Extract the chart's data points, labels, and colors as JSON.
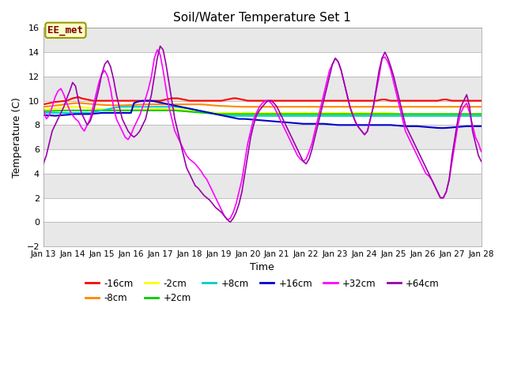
{
  "title": "Soil/Water Temperature Set 1",
  "xlabel": "Time",
  "ylabel": "Temperature (C)",
  "ylim": [
    -2,
    16
  ],
  "yticks": [
    -2,
    0,
    2,
    4,
    6,
    8,
    10,
    12,
    14,
    16
  ],
  "xlim": [
    0,
    15
  ],
  "xtick_labels": [
    "Jan 13",
    "Jan 14",
    "Jan 15",
    "Jan 16",
    "Jan 17",
    "Jan 18",
    "Jan 19",
    "Jan 20",
    "Jan 21",
    "Jan 22",
    "Jan 23",
    "Jan 24",
    "Jan 25",
    "Jan 26",
    "Jan 27",
    "Jan 28"
  ],
  "annotation_text": "EE_met",
  "annotation_bg": "#ffffcc",
  "annotation_border": "#999900",
  "annotation_text_color": "#800000",
  "bg_color": "#e8e8e8",
  "white_band_starts": [
    -2,
    2,
    6,
    10,
    14
  ],
  "gray_band_starts": [
    0,
    4,
    8,
    12
  ],
  "series": [
    {
      "label": "-16cm",
      "color": "#ff0000",
      "lw": 1.5,
      "values": [
        9.7,
        9.75,
        9.8,
        9.85,
        9.9,
        9.92,
        9.95,
        9.97,
        10.0,
        10.1,
        10.2,
        10.25,
        10.3,
        10.2,
        10.15,
        10.1,
        10.05,
        10.0,
        10.0,
        10.0,
        10.0,
        10.0,
        10.0,
        10.0,
        10.0,
        10.0,
        10.0,
        10.0,
        10.0,
        10.0,
        10.0,
        10.0,
        10.0,
        10.0,
        10.0,
        10.0,
        10.0,
        10.0,
        10.0,
        10.0,
        10.0,
        10.05,
        10.1,
        10.15,
        10.2,
        10.2,
        10.2,
        10.15,
        10.1,
        10.05,
        10.0,
        10.0,
        10.0,
        10.0,
        10.0,
        10.0,
        10.0,
        10.0,
        10.0,
        10.0,
        10.0,
        10.0,
        10.05,
        10.1,
        10.15,
        10.2,
        10.2,
        10.15,
        10.1,
        10.05,
        10.0,
        10.0,
        10.0,
        10.0,
        10.0,
        10.0,
        10.0,
        10.0,
        10.0,
        10.0,
        10.0,
        10.0,
        10.0,
        10.0,
        10.0,
        10.0,
        10.0,
        10.0,
        10.0,
        10.0,
        10.0,
        10.0,
        10.0,
        10.0,
        10.0,
        10.0,
        10.0,
        10.0,
        10.0,
        10.0,
        10.0,
        10.0,
        10.0,
        10.0,
        10.0,
        10.0,
        10.0,
        10.0,
        10.0,
        10.0,
        10.0,
        10.0,
        10.0,
        10.0,
        10.0,
        10.05,
        10.1,
        10.1,
        10.05,
        10.0,
        10.0,
        10.0,
        10.0,
        10.0,
        10.0,
        10.0,
        10.0,
        10.0,
        10.0,
        10.0,
        10.0,
        10.0,
        10.0,
        10.0,
        10.0,
        10.0,
        10.05,
        10.1,
        10.1,
        10.05,
        10.0,
        10.0,
        10.0,
        10.0,
        10.0,
        10.0,
        10.0,
        10.0,
        10.0,
        10.0,
        10.0
      ]
    },
    {
      "label": "-8cm",
      "color": "#ff8800",
      "lw": 1.5,
      "values": [
        9.5,
        9.52,
        9.55,
        9.57,
        9.6,
        9.62,
        9.65,
        9.7,
        9.72,
        9.75,
        9.78,
        9.8,
        9.8,
        9.8,
        9.78,
        9.76,
        9.74,
        9.72,
        9.7,
        9.68,
        9.66,
        9.65,
        9.64,
        9.63,
        9.62,
        9.62,
        9.62,
        9.62,
        9.63,
        9.64,
        9.65,
        9.66,
        9.67,
        9.68,
        9.69,
        9.7,
        9.7,
        9.7,
        9.7,
        9.7,
        9.7,
        9.7,
        9.7,
        9.7,
        9.7,
        9.7,
        9.7,
        9.7,
        9.7,
        9.7,
        9.7,
        9.7,
        9.7,
        9.7,
        9.7,
        9.68,
        9.66,
        9.64,
        9.62,
        9.6,
        9.58,
        9.57,
        9.56,
        9.55,
        9.54,
        9.53,
        9.52,
        9.51,
        9.5,
        9.5,
        9.5,
        9.5,
        9.5,
        9.5,
        9.5,
        9.5,
        9.5,
        9.5,
        9.5,
        9.5,
        9.5,
        9.5,
        9.5,
        9.5,
        9.5,
        9.5,
        9.5,
        9.5,
        9.5,
        9.5,
        9.5,
        9.5,
        9.5,
        9.5,
        9.5,
        9.5,
        9.5,
        9.5,
        9.5,
        9.5,
        9.5,
        9.5,
        9.5,
        9.5,
        9.5,
        9.5,
        9.5,
        9.5,
        9.5,
        9.5,
        9.5,
        9.5,
        9.5,
        9.5,
        9.5,
        9.5,
        9.5,
        9.5,
        9.5,
        9.5,
        9.5,
        9.5,
        9.5,
        9.5,
        9.5,
        9.5,
        9.5,
        9.5,
        9.5,
        9.5,
        9.5,
        9.5,
        9.5,
        9.5,
        9.5,
        9.5,
        9.5,
        9.5,
        9.5,
        9.5,
        9.5,
        9.5,
        9.5,
        9.5,
        9.5,
        9.5,
        9.5,
        9.5,
        9.5,
        9.5,
        9.5
      ]
    },
    {
      "label": "-2cm",
      "color": "#ffff00",
      "lw": 1.5,
      "values": [
        9.3,
        9.3,
        9.32,
        9.34,
        9.36,
        9.38,
        9.4,
        9.42,
        9.45,
        9.48,
        9.5,
        9.5,
        9.48,
        9.46,
        9.44,
        9.42,
        9.4,
        9.38,
        9.36,
        9.34,
        9.32,
        9.3,
        9.28,
        9.26,
        9.25,
        9.24,
        9.23,
        9.22,
        9.22,
        9.22,
        9.23,
        9.24,
        9.25,
        9.26,
        9.27,
        9.28,
        9.29,
        9.3,
        9.3,
        9.3,
        9.3,
        9.3,
        9.3,
        9.3,
        9.3,
        9.3,
        9.28,
        9.26,
        9.24,
        9.22,
        9.2,
        9.18,
        9.16,
        9.14,
        9.12,
        9.1,
        9.08,
        9.06,
        9.04,
        9.02,
        9.0,
        9.0,
        9.0,
        9.0,
        9.0,
        9.0,
        9.0,
        9.0,
        9.0,
        9.0,
        9.0,
        9.0,
        9.0,
        9.0,
        9.0,
        9.0,
        9.0,
        9.0,
        9.0,
        9.0,
        9.0,
        9.0,
        9.0,
        9.0,
        9.0,
        9.0,
        9.0,
        9.0,
        9.0,
        9.0,
        9.0,
        9.0,
        9.0,
        9.0,
        9.0,
        9.0,
        9.0,
        9.0,
        9.0,
        9.0,
        9.0,
        9.0,
        9.0,
        9.0,
        9.0,
        9.0,
        9.0,
        9.0,
        9.0,
        9.0,
        9.0,
        9.0,
        9.0,
        9.0,
        9.0,
        9.0,
        9.0,
        9.0,
        9.0,
        8.98,
        8.96,
        8.94,
        8.92,
        8.9,
        8.9,
        8.9,
        8.9,
        8.9,
        8.9,
        8.9,
        8.9,
        8.9,
        8.9,
        8.9,
        8.9,
        8.9,
        8.9,
        8.9,
        8.9,
        8.9,
        8.9,
        8.9,
        8.9,
        8.9,
        8.9,
        8.9,
        8.9,
        8.9,
        8.9,
        8.9,
        8.9
      ]
    },
    {
      "label": "+2cm",
      "color": "#00cc00",
      "lw": 1.5,
      "values": [
        9.15,
        9.15,
        9.15,
        9.16,
        9.17,
        9.18,
        9.19,
        9.2,
        9.2,
        9.2,
        9.2,
        9.2,
        9.2,
        9.2,
        9.2,
        9.2,
        9.2,
        9.2,
        9.2,
        9.2,
        9.2,
        9.2,
        9.2,
        9.2,
        9.2,
        9.2,
        9.2,
        9.2,
        9.2,
        9.2,
        9.2,
        9.2,
        9.2,
        9.2,
        9.2,
        9.2,
        9.2,
        9.2,
        9.2,
        9.2,
        9.2,
        9.2,
        9.2,
        9.2,
        9.2,
        9.2,
        9.18,
        9.16,
        9.14,
        9.12,
        9.1,
        9.08,
        9.06,
        9.04,
        9.02,
        9.0,
        8.98,
        8.96,
        8.94,
        8.92,
        8.9,
        8.9,
        8.9,
        8.9,
        8.9,
        8.9,
        8.9,
        8.9,
        8.9,
        8.9,
        8.9,
        8.9,
        8.9,
        8.9,
        8.9,
        8.9,
        8.9,
        8.9,
        8.9,
        8.9,
        8.9,
        8.9,
        8.9,
        8.9,
        8.9,
        8.9,
        8.9,
        8.9,
        8.9,
        8.9,
        8.9,
        8.9,
        8.9,
        8.9,
        8.9,
        8.9,
        8.9,
        8.9,
        8.9,
        8.9,
        8.9,
        8.9,
        8.9,
        8.9,
        8.9,
        8.9,
        8.9,
        8.9,
        8.9,
        8.9,
        8.9,
        8.9,
        8.9,
        8.9,
        8.9,
        8.9,
        8.9,
        8.9,
        8.9,
        8.9,
        8.9,
        8.9,
        8.9,
        8.9,
        8.9,
        8.9,
        8.9,
        8.9,
        8.9,
        8.9,
        8.9,
        8.9,
        8.9,
        8.9,
        8.9,
        8.9,
        8.9,
        8.9,
        8.9,
        8.9,
        8.9,
        8.9,
        8.9,
        8.9,
        8.9,
        8.9,
        8.9,
        8.9,
        8.9,
        8.9,
        8.9
      ]
    },
    {
      "label": "+8cm",
      "color": "#00cccc",
      "lw": 1.5,
      "values": [
        9.0,
        9.0,
        9.0,
        9.0,
        9.0,
        9.0,
        9.0,
        9.0,
        9.0,
        9.0,
        9.0,
        9.0,
        9.0,
        9.0,
        9.0,
        9.0,
        9.0,
        9.05,
        9.1,
        9.15,
        9.2,
        9.25,
        9.3,
        9.35,
        9.4,
        9.45,
        9.48,
        9.5,
        9.5,
        9.5,
        9.5,
        9.5,
        9.5,
        9.5,
        9.5,
        9.5,
        9.5,
        9.5,
        9.5,
        9.5,
        9.5,
        9.5,
        9.5,
        9.5,
        9.5,
        9.5,
        9.48,
        9.45,
        9.42,
        9.4,
        9.35,
        9.3,
        9.25,
        9.2,
        9.15,
        9.1,
        9.05,
        9.0,
        8.95,
        8.9,
        8.85,
        8.82,
        8.8,
        8.78,
        8.76,
        8.75,
        8.75,
        8.75,
        8.75,
        8.75,
        8.75,
        8.75,
        8.75,
        8.75,
        8.75,
        8.75,
        8.75,
        8.75,
        8.75,
        8.75,
        8.75,
        8.75,
        8.75,
        8.75,
        8.75,
        8.75,
        8.75,
        8.75,
        8.75,
        8.75,
        8.75,
        8.75,
        8.75,
        8.75,
        8.75,
        8.75,
        8.75,
        8.75,
        8.75,
        8.75,
        8.75,
        8.75,
        8.75,
        8.75,
        8.75,
        8.75,
        8.75,
        8.75,
        8.75,
        8.75,
        8.75,
        8.75,
        8.75,
        8.75,
        8.75,
        8.75,
        8.75,
        8.75,
        8.75,
        8.75,
        8.75,
        8.75,
        8.75,
        8.75,
        8.75,
        8.75,
        8.75,
        8.75,
        8.75,
        8.75,
        8.75,
        8.75,
        8.75,
        8.75,
        8.75,
        8.75,
        8.75,
        8.75,
        8.75,
        8.75,
        8.75,
        8.75,
        8.75,
        8.75,
        8.75,
        8.75,
        8.75,
        8.75,
        8.75,
        8.75,
        8.75
      ]
    },
    {
      "label": "+16cm",
      "color": "#0000cc",
      "lw": 1.5,
      "values": [
        8.8,
        8.8,
        8.8,
        8.78,
        8.76,
        8.78,
        8.8,
        8.82,
        8.84,
        8.86,
        8.88,
        8.9,
        8.9,
        8.9,
        8.9,
        8.9,
        8.9,
        8.92,
        8.95,
        8.97,
        9.0,
        9.0,
        9.0,
        9.0,
        9.0,
        9.0,
        9.0,
        9.0,
        9.0,
        9.0,
        9.0,
        9.8,
        9.9,
        9.95,
        9.98,
        10.0,
        10.0,
        9.98,
        9.95,
        9.9,
        9.85,
        9.8,
        9.75,
        9.7,
        9.65,
        9.6,
        9.55,
        9.5,
        9.45,
        9.4,
        9.35,
        9.3,
        9.25,
        9.2,
        9.15,
        9.1,
        9.05,
        9.0,
        8.95,
        8.9,
        8.85,
        8.8,
        8.75,
        8.7,
        8.65,
        8.6,
        8.55,
        8.5,
        8.5,
        8.5,
        8.48,
        8.46,
        8.44,
        8.42,
        8.4,
        8.38,
        8.36,
        8.34,
        8.32,
        8.3,
        8.28,
        8.26,
        8.24,
        8.22,
        8.2,
        8.18,
        8.16,
        8.14,
        8.12,
        8.1,
        8.1,
        8.1,
        8.1,
        8.1,
        8.1,
        8.1,
        8.1,
        8.08,
        8.06,
        8.04,
        8.02,
        8.0,
        8.0,
        8.0,
        8.0,
        8.0,
        8.0,
        8.0,
        8.0,
        8.0,
        8.0,
        8.0,
        8.0,
        8.0,
        8.0,
        8.0,
        8.0,
        8.0,
        8.0,
        8.0,
        7.98,
        7.96,
        7.94,
        7.92,
        7.9,
        7.9,
        7.9,
        7.9,
        7.9,
        7.88,
        7.86,
        7.84,
        7.82,
        7.8,
        7.78,
        7.76,
        7.75,
        7.75,
        7.76,
        7.78,
        7.8,
        7.82,
        7.84,
        7.86,
        7.88,
        7.9,
        7.9,
        7.9,
        7.9,
        7.9,
        7.9
      ]
    },
    {
      "label": "+32cm",
      "color": "#ff00ff",
      "lw": 1.2,
      "values": [
        9.3,
        8.5,
        8.8,
        9.5,
        10.3,
        10.8,
        11.0,
        10.5,
        9.8,
        9.2,
        8.8,
        8.5,
        8.3,
        7.8,
        7.5,
        8.0,
        8.5,
        9.5,
        10.5,
        11.5,
        12.2,
        12.5,
        12.0,
        11.0,
        9.5,
        8.5,
        8.0,
        7.5,
        7.0,
        6.8,
        7.2,
        7.8,
        8.3,
        8.8,
        9.5,
        10.2,
        11.0,
        12.0,
        13.5,
        14.2,
        13.8,
        12.5,
        11.0,
        9.5,
        8.5,
        7.5,
        7.0,
        6.5,
        6.0,
        5.5,
        5.2,
        5.0,
        4.8,
        4.5,
        4.2,
        3.8,
        3.5,
        3.0,
        2.5,
        2.0,
        1.5,
        1.0,
        0.5,
        0.2,
        0.3,
        0.8,
        1.5,
        2.5,
        3.5,
        5.0,
        6.5,
        7.5,
        8.5,
        9.0,
        9.5,
        9.8,
        10.0,
        10.0,
        9.8,
        9.5,
        9.0,
        8.5,
        8.0,
        7.5,
        7.0,
        6.5,
        6.0,
        5.5,
        5.2,
        5.0,
        5.2,
        5.8,
        6.5,
        7.5,
        8.5,
        9.5,
        10.5,
        11.5,
        12.5,
        13.0,
        13.5,
        13.2,
        12.5,
        11.5,
        10.5,
        9.5,
        8.8,
        8.2,
        7.8,
        7.5,
        7.2,
        7.5,
        8.5,
        9.5,
        10.8,
        12.0,
        13.5,
        13.6,
        13.2,
        12.5,
        11.5,
        10.5,
        9.5,
        8.5,
        7.5,
        7.0,
        6.5,
        6.0,
        5.5,
        5.0,
        4.5,
        4.0,
        3.8,
        3.5,
        3.0,
        2.5,
        2.0,
        2.0,
        2.5,
        3.5,
        5.0,
        6.5,
        8.0,
        9.0,
        9.5,
        9.8,
        9.0,
        8.0,
        7.0,
        6.5,
        5.8
      ]
    },
    {
      "label": "+64cm",
      "color": "#9900aa",
      "lw": 1.2,
      "values": [
        4.8,
        5.5,
        6.5,
        7.5,
        8.0,
        8.5,
        9.0,
        9.5,
        10.2,
        10.8,
        11.5,
        11.2,
        10.0,
        9.0,
        8.5,
        8.0,
        8.3,
        9.0,
        10.0,
        11.0,
        12.2,
        13.0,
        13.3,
        12.8,
        11.8,
        10.5,
        9.5,
        8.5,
        8.0,
        7.5,
        7.2,
        7.0,
        7.2,
        7.5,
        8.0,
        8.5,
        9.5,
        10.5,
        12.0,
        13.5,
        14.5,
        14.2,
        13.0,
        11.5,
        10.0,
        8.5,
        7.5,
        6.5,
        5.5,
        4.5,
        4.0,
        3.5,
        3.0,
        2.8,
        2.5,
        2.2,
        2.0,
        1.8,
        1.5,
        1.2,
        1.0,
        0.8,
        0.5,
        0.2,
        0.0,
        0.3,
        0.8,
        1.5,
        2.5,
        4.0,
        5.5,
        7.0,
        8.0,
        8.8,
        9.2,
        9.5,
        9.8,
        10.0,
        10.0,
        9.8,
        9.5,
        9.0,
        8.5,
        8.0,
        7.5,
        7.0,
        6.5,
        6.0,
        5.5,
        5.0,
        4.8,
        5.2,
        6.0,
        7.0,
        8.0,
        9.0,
        10.0,
        11.0,
        12.0,
        13.0,
        13.5,
        13.2,
        12.5,
        11.5,
        10.5,
        9.5,
        8.8,
        8.2,
        7.8,
        7.5,
        7.2,
        7.5,
        8.5,
        9.5,
        11.0,
        12.5,
        13.5,
        14.0,
        13.5,
        12.8,
        12.0,
        11.0,
        10.0,
        9.0,
        8.0,
        7.5,
        7.0,
        6.5,
        6.0,
        5.5,
        5.0,
        4.5,
        4.0,
        3.5,
        3.0,
        2.5,
        2.0,
        2.0,
        2.5,
        3.5,
        5.5,
        7.0,
        8.5,
        9.5,
        10.0,
        10.5,
        9.5,
        7.5,
        6.5,
        5.5,
        5.0
      ]
    }
  ]
}
